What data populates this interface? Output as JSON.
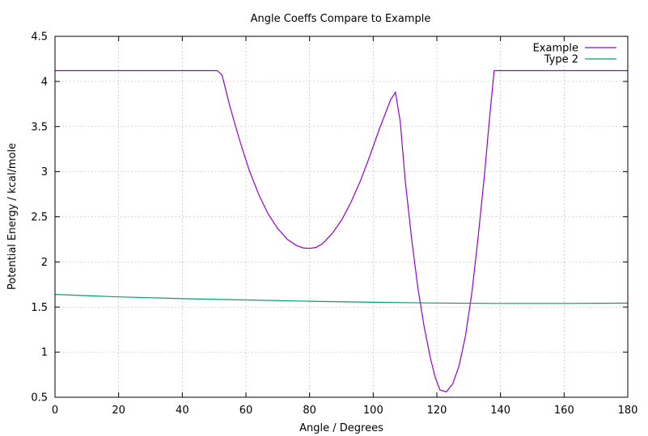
{
  "chart_data": {
    "type": "line",
    "title": "Angle Coeffs Compare to Example",
    "xlabel": "Angle / Degrees",
    "ylabel": "Potential Energy / kcal/mole",
    "xlim": [
      0,
      180
    ],
    "ylim": [
      0.5,
      4.5
    ],
    "xticks": [
      0,
      20,
      40,
      60,
      80,
      100,
      120,
      140,
      160,
      180
    ],
    "yticks": [
      0.5,
      1,
      1.5,
      2,
      2.5,
      3,
      3.5,
      4,
      4.5
    ],
    "xtick_labels": [
      "0",
      "20",
      "40",
      "60",
      "80",
      "100",
      "120",
      "140",
      "160",
      "180"
    ],
    "ytick_labels": [
      "0.5",
      "1",
      "1.5",
      "2",
      "2.5",
      "3",
      "3.5",
      "4",
      "4.5"
    ],
    "grid": true,
    "legend_position": "top-right",
    "series": [
      {
        "name": "Example",
        "color": "#9400d3",
        "x": [
          0,
          51,
          52.5,
          55,
          58,
          61,
          64,
          67,
          70,
          73,
          76,
          78,
          80,
          82,
          84,
          87,
          90,
          93,
          96,
          99,
          102,
          105.5,
          107,
          108.5,
          110,
          112,
          114,
          116,
          118,
          119.5,
          121,
          123,
          125,
          127,
          129,
          131,
          133,
          135,
          136.5,
          138,
          180
        ],
        "y": [
          4.12,
          4.12,
          4.07,
          3.72,
          3.35,
          3.02,
          2.75,
          2.53,
          2.37,
          2.25,
          2.18,
          2.155,
          2.15,
          2.16,
          2.2,
          2.31,
          2.46,
          2.66,
          2.9,
          3.18,
          3.48,
          3.8,
          3.88,
          3.55,
          2.92,
          2.28,
          1.72,
          1.28,
          0.93,
          0.72,
          0.58,
          0.56,
          0.65,
          0.85,
          1.18,
          1.66,
          2.28,
          2.98,
          3.57,
          4.12,
          4.12
        ]
      },
      {
        "name": "Type 2",
        "color": "#009e73",
        "x": [
          0,
          20,
          40,
          60,
          80,
          100,
          120,
          140,
          160,
          180
        ],
        "y": [
          1.64,
          1.612,
          1.593,
          1.578,
          1.564,
          1.552,
          1.544,
          1.54,
          1.54,
          1.543
        ]
      }
    ]
  }
}
